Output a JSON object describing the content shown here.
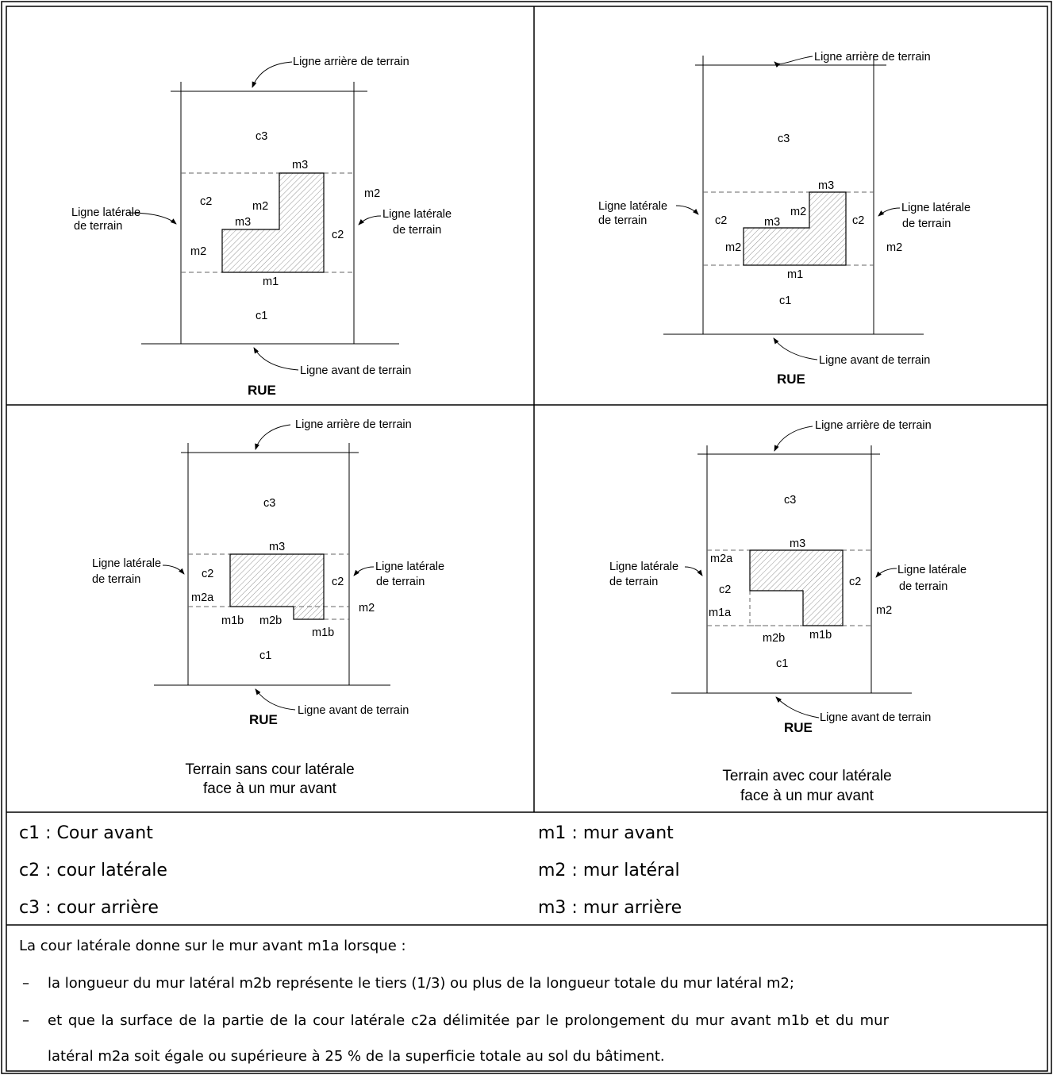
{
  "labels": {
    "rear_line": "Ligne arrière de terrain",
    "front_line": "Ligne avant de terrain",
    "side_line_1": "Ligne latérale",
    "side_line_2": "de terrain",
    "street": "RUE",
    "c1": "c1",
    "c2": "c2",
    "c3": "c3",
    "m1": "m1",
    "m2": "m2",
    "m3": "m3",
    "m1a": "m1a",
    "m1b": "m1b",
    "m2a": "m2a",
    "m2b": "m2b"
  },
  "captions": {
    "left_1": "Terrain sans cour latérale",
    "left_2": "face à un mur avant",
    "right_1": "Terrain avec cour latérale",
    "right_2": "face à un mur avant"
  },
  "legend": {
    "c1": "c1 : Cour avant",
    "c2": "c2 : cour latérale",
    "c3": "c3 : cour arrière",
    "m1": "m1 : mur avant",
    "m2": "m2 : mur latéral",
    "m3": "m3 : mur arrière"
  },
  "note": {
    "intro": "La cour latérale donne sur le mur avant m1a lorsque :",
    "bullet_mark": "–",
    "b1": "la longueur du mur latéral m2b représente le tiers (1/3) ou plus de la longueur totale du mur latéral m2;",
    "b2a": "et que la surface de la partie de la cour latérale c2a délimitée par le prolongement du mur avant m1b et du mur",
    "b2b": "latéral m2a soit égale ou supérieure à 25 % de la superficie totale au sol du bâtiment."
  }
}
